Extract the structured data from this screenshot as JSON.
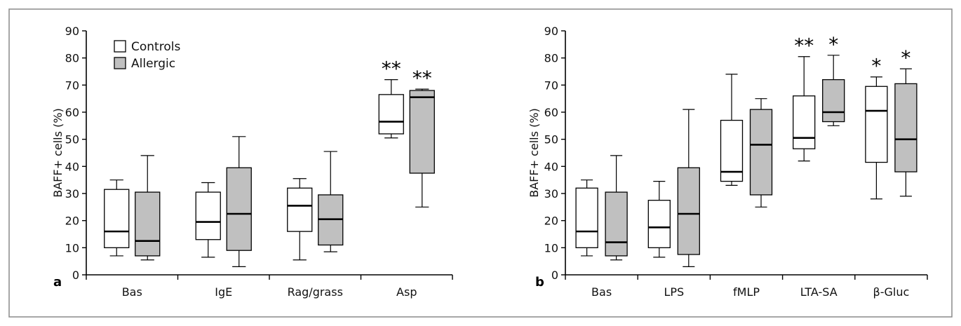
{
  "colors": {
    "controls": "#ffffff",
    "allergic": "#c0c0c0",
    "frame": "#8a8a8a"
  },
  "chart_data": [
    {
      "type": "box",
      "panel_label": "a",
      "ylabel": "BAFF+ cells (%)",
      "ylim": [
        0,
        90
      ],
      "yticks": [
        0,
        10,
        20,
        30,
        40,
        50,
        60,
        70,
        80,
        90
      ],
      "categories": [
        "Bas",
        "IgE",
        "Rag/grass",
        "Asp"
      ],
      "legend": {
        "position": "top-left",
        "entries": [
          "Controls",
          "Allergic"
        ]
      },
      "series": [
        {
          "name": "Controls",
          "color": "#ffffff",
          "boxes": [
            {
              "min": 7,
              "q1": 10,
              "median": 16,
              "q3": 31.5,
              "max": 35
            },
            {
              "min": 6.5,
              "q1": 13,
              "median": 19.5,
              "q3": 30.5,
              "max": 34
            },
            {
              "min": 5.5,
              "q1": 16,
              "median": 25.5,
              "q3": 32,
              "max": 35.5
            },
            {
              "min": 50.5,
              "q1": 52,
              "median": 56.5,
              "q3": 66.5,
              "max": 72
            }
          ]
        },
        {
          "name": "Allergic",
          "color": "#c0c0c0",
          "boxes": [
            {
              "min": 5.5,
              "q1": 7,
              "median": 12.5,
              "q3": 30.5,
              "max": 44
            },
            {
              "min": 3,
              "q1": 9,
              "median": 22.5,
              "q3": 39.5,
              "max": 51
            },
            {
              "min": 8.5,
              "q1": 11,
              "median": 20.5,
              "q3": 29.5,
              "max": 45.5
            },
            {
              "min": 25,
              "q1": 37.5,
              "median": 65.5,
              "q3": 68,
              "max": 68.5
            }
          ]
        }
      ],
      "annotations": [
        {
          "category": 3,
          "series": 0,
          "text": "**"
        },
        {
          "category": 3,
          "series": 1,
          "text": "**"
        }
      ]
    },
    {
      "type": "box",
      "panel_label": "b",
      "ylabel": "BAFF+ cells (%)",
      "ylim": [
        0,
        90
      ],
      "yticks": [
        0,
        10,
        20,
        30,
        40,
        50,
        60,
        70,
        80,
        90
      ],
      "categories": [
        "Bas",
        "LPS",
        "fMLP",
        "LTA-SA",
        "β-Gluc"
      ],
      "series": [
        {
          "name": "Controls",
          "color": "#ffffff",
          "boxes": [
            {
              "min": 7,
              "q1": 10,
              "median": 16,
              "q3": 32,
              "max": 35
            },
            {
              "min": 6.5,
              "q1": 10,
              "median": 17.5,
              "q3": 27.5,
              "max": 34.5
            },
            {
              "min": 33,
              "q1": 34.5,
              "median": 38,
              "q3": 57,
              "max": 74
            },
            {
              "min": 42,
              "q1": 46.5,
              "median": 50.5,
              "q3": 66,
              "max": 80.5
            },
            {
              "min": 28,
              "q1": 41.5,
              "median": 60.5,
              "q3": 69.5,
              "max": 73
            }
          ]
        },
        {
          "name": "Allergic",
          "color": "#c0c0c0",
          "boxes": [
            {
              "min": 5.5,
              "q1": 7,
              "median": 12,
              "q3": 30.5,
              "max": 44
            },
            {
              "min": 3,
              "q1": 7.5,
              "median": 22.5,
              "q3": 39.5,
              "max": 61
            },
            {
              "min": 25,
              "q1": 29.5,
              "median": 48,
              "q3": 61,
              "max": 65
            },
            {
              "min": 55,
              "q1": 56.5,
              "median": 60,
              "q3": 72,
              "max": 81
            },
            {
              "min": 29,
              "q1": 38,
              "median": 50,
              "q3": 70.5,
              "max": 76
            }
          ]
        }
      ],
      "annotations": [
        {
          "category": 3,
          "series": 0,
          "text": "**"
        },
        {
          "category": 3,
          "series": 1,
          "text": "*"
        },
        {
          "category": 4,
          "series": 0,
          "text": "*"
        },
        {
          "category": 4,
          "series": 1,
          "text": "*"
        }
      ]
    }
  ]
}
